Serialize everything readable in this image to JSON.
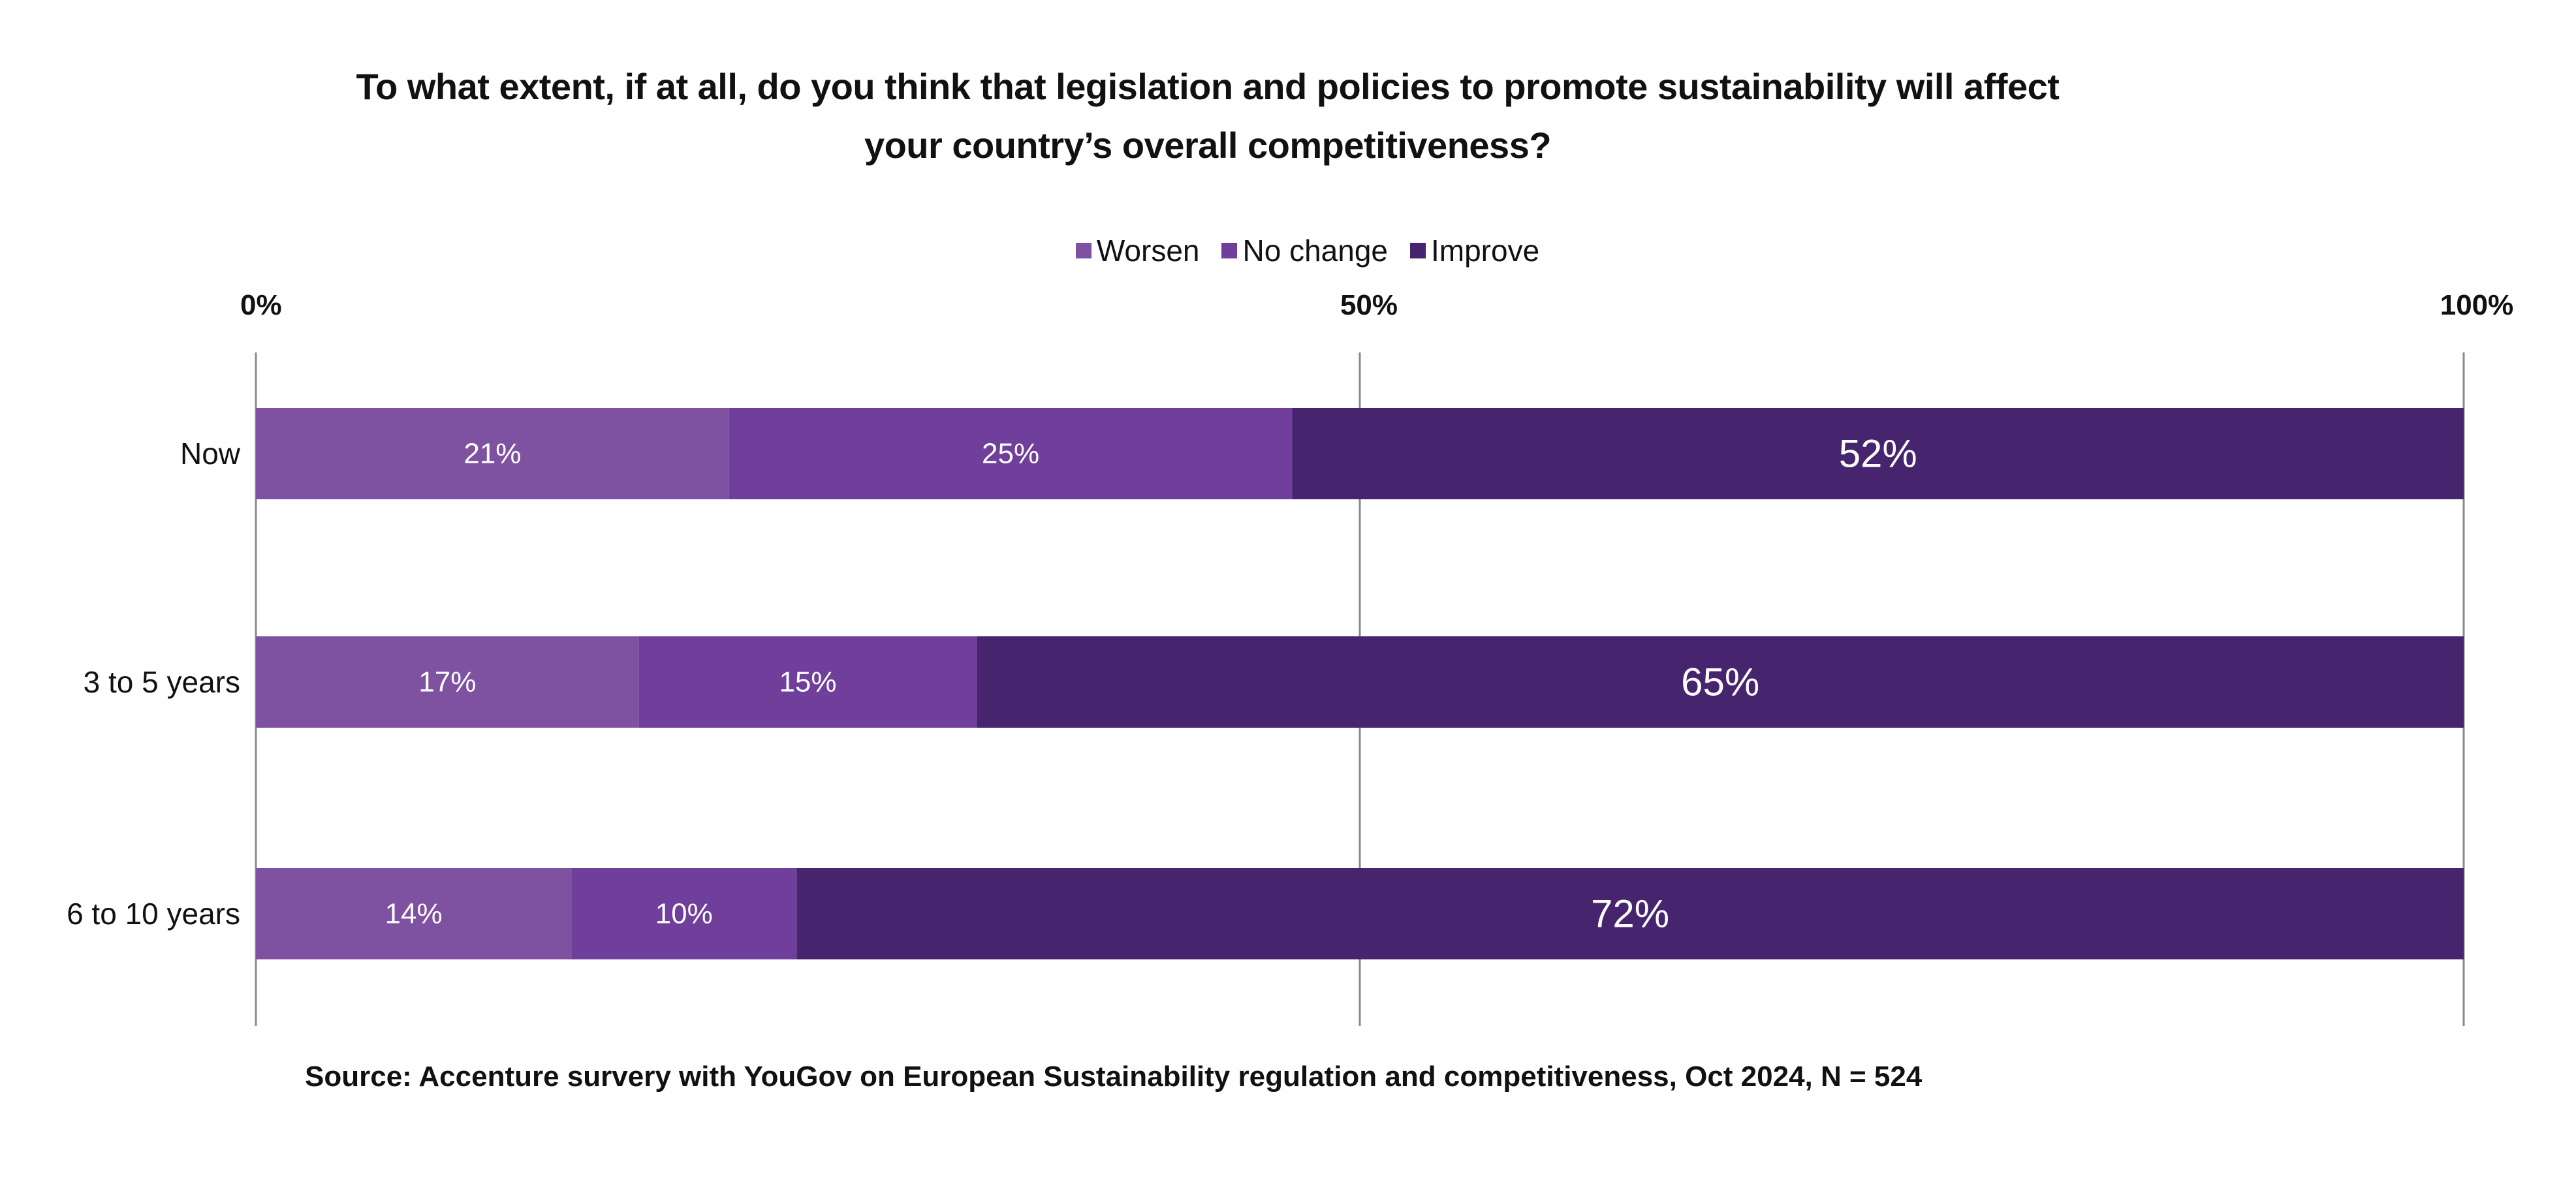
{
  "title_line1": "To what extent, if at all, do you think that legislation and policies to promote sustainability will affect",
  "title_line2": "your country’s overall competitiveness?",
  "source": "Source: Accenture survery with YouGov on European Sustainability regulation and competitiveness, Oct 2024, N = 524",
  "colors": {
    "worsen": "#7f51a1",
    "no_change": "#6f3f9b",
    "improve": "#46246e",
    "gridline": "#8a8a8a"
  },
  "chart_data": {
    "type": "bar",
    "orientation": "horizontal",
    "stacked": true,
    "title": "To what extent, if at all, do you think that legislation and policies to promote sustainability will affect your country’s overall competitiveness?",
    "categories": [
      "Now",
      "3 to 5 years",
      "6 to 10 years"
    ],
    "series": [
      {
        "name": "Worsen",
        "values": [
          21,
          17,
          14
        ],
        "labels": [
          "21%",
          "17%",
          "14%"
        ]
      },
      {
        "name": "No change",
        "values": [
          25,
          15,
          10
        ],
        "labels": [
          "25%",
          "15%",
          "10%"
        ]
      },
      {
        "name": "Improve",
        "values": [
          52,
          65,
          72
        ],
        "labels": [
          "52%",
          "65%",
          "72%"
        ]
      }
    ],
    "scale_max_value": 98,
    "axis_ticks": [
      {
        "value": 0,
        "label": "0%"
      },
      {
        "value": 50,
        "label": "50%"
      },
      {
        "value": 100,
        "label": "100%"
      }
    ],
    "xlim": [
      0,
      100
    ],
    "grid": true,
    "legend": "top-center"
  }
}
